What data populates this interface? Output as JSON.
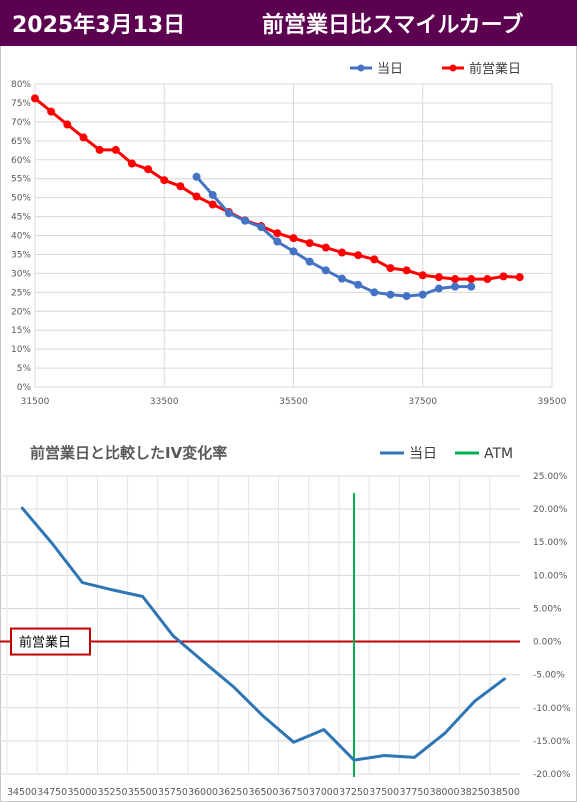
{
  "header": {
    "date": "2025年3月13日",
    "title": "前営業日比スマイルカーブ"
  },
  "colors": {
    "header_bg": "#5c0050",
    "today": "#4472c4",
    "prev": "#ff0000",
    "ivchange": "#2e75b6",
    "atm": "#00b050",
    "zero_line": "#c00000"
  },
  "chart_data": [
    {
      "type": "line",
      "title": "",
      "xlabel": "",
      "ylabel": "",
      "xlim": [
        31500,
        39500
      ],
      "ylim": [
        0,
        0.8
      ],
      "x_ticks": [
        "31500",
        "33500",
        "35500",
        "37500",
        "39500"
      ],
      "y_ticks": [
        "0%",
        "5%",
        "10%",
        "15%",
        "20%",
        "25%",
        "30%",
        "35%",
        "40%",
        "45%",
        "50%",
        "55%",
        "60%",
        "65%",
        "70%",
        "75%",
        "80%"
      ],
      "grid": true,
      "legend_position": "top-right",
      "series": [
        {
          "name": "当日",
          "color": "#4472c4",
          "x": [
            34000,
            34250,
            34500,
            34750,
            35000,
            35250,
            35500,
            35750,
            36000,
            36250,
            36500,
            36750,
            37000,
            37250,
            37500,
            37750,
            38000,
            38250
          ],
          "y": [
            0.555,
            0.507,
            0.459,
            0.439,
            0.422,
            0.384,
            0.358,
            0.331,
            0.308,
            0.286,
            0.27,
            0.25,
            0.244,
            0.24,
            0.244,
            0.26,
            0.265,
            0.265
          ]
        },
        {
          "name": "前営業日",
          "color": "#ff0000",
          "x": [
            31500,
            31750,
            32000,
            32250,
            32500,
            32750,
            33000,
            33250,
            33500,
            33750,
            34000,
            34250,
            34500,
            34750,
            35000,
            35250,
            35500,
            35750,
            36000,
            36250,
            36500,
            36750,
            37000,
            37250,
            37500,
            37750,
            38000,
            38250,
            38500,
            38750,
            39000
          ],
          "y": [
            0.762,
            0.727,
            0.693,
            0.659,
            0.626,
            0.626,
            0.59,
            0.575,
            0.546,
            0.53,
            0.503,
            0.482,
            0.462,
            0.44,
            0.425,
            0.406,
            0.393,
            0.38,
            0.368,
            0.355,
            0.348,
            0.337,
            0.314,
            0.308,
            0.295,
            0.29,
            0.285,
            0.285,
            0.285,
            0.292,
            0.29
          ]
        }
      ]
    },
    {
      "type": "line",
      "title": "前営業日と比較したIV変化率",
      "xlabel": "",
      "ylabel": "",
      "ylim": [
        -0.2,
        0.25
      ],
      "y_ticks": [
        "25.00%",
        "20.00%",
        "15.00%",
        "10.00%",
        "5.00%",
        "0.00%",
        "-5.00%",
        "-10.00%",
        "-15.00%",
        "-20.00%"
      ],
      "categories": [
        "34500",
        "34750",
        "35000",
        "35250",
        "35500",
        "35750",
        "36000",
        "36250",
        "36500",
        "36750",
        "37000",
        "37250",
        "37500",
        "37750",
        "38000",
        "38250",
        "38500"
      ],
      "grid": true,
      "legend_position": "top-right",
      "zero_line_label": "前営業日",
      "series": [
        {
          "name": "当日",
          "color": "#2e75b6",
          "values": [
            0.202,
            0.148,
            0.089,
            0.078,
            0.068,
            0.009,
            -0.03,
            -0.068,
            -0.113,
            -0.152,
            -0.133,
            -0.179,
            -0.172,
            -0.175,
            -0.139,
            -0.09,
            -0.056
          ]
        },
        {
          "name": "ATM",
          "color": "#00b050",
          "category": "37250"
        }
      ]
    }
  ]
}
